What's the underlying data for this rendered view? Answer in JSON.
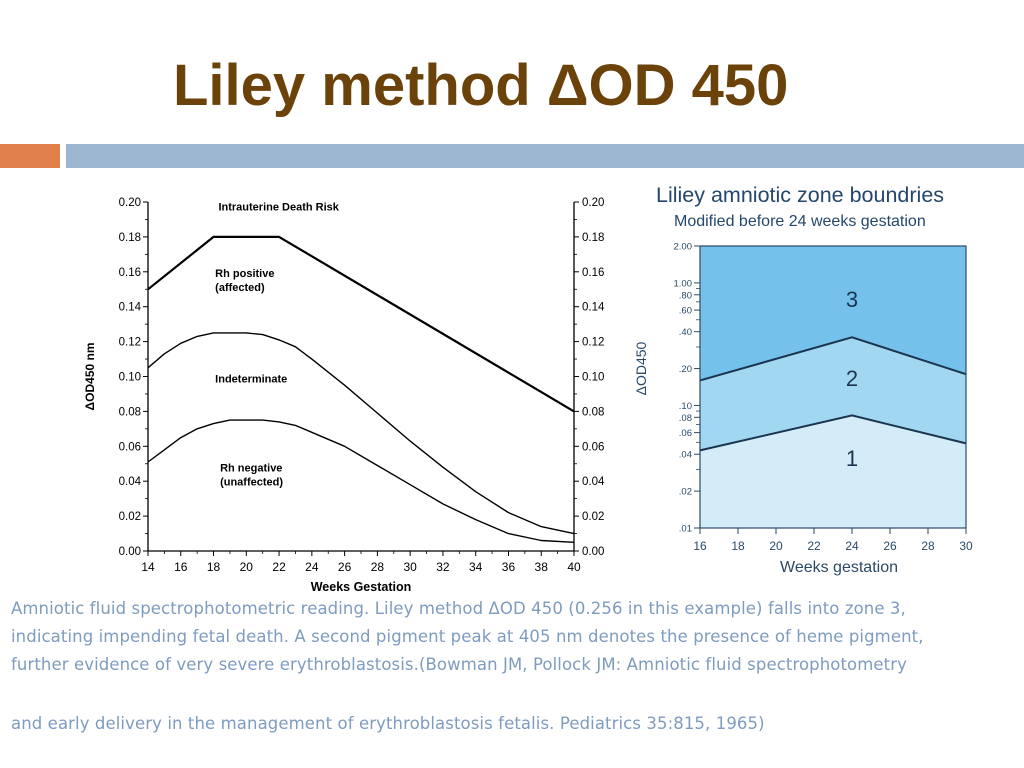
{
  "slide": {
    "title": "Liley method ΔOD 450",
    "caption_lines": [
      "Amniotic fluid spectrophotometric reading. Liley method ΔOD 450 (0.256 in this example) falls into zone 3,",
      "indicating impending fetal death. A second pigment peak at 405 nm denotes the presence of heme pigment,",
      "further evidence of very severe erythroblastosis.(Bowman JM, Pollock JM: Amniotic fluid spectrophotometry",
      "and early delivery in the management of erythroblastosis fetalis. Pediatrics 35:815, 1965)"
    ],
    "colors": {
      "title": "#6b4209",
      "accent_orange": "#e07f49",
      "accent_blue": "#9cb6d0",
      "caption": "#7e9bc0"
    }
  },
  "chart_data": [
    {
      "type": "line",
      "title": "",
      "xlabel": "Weeks Gestation",
      "ylabel": "ΔOD450 nm",
      "xlim": [
        14,
        40
      ],
      "ylim": [
        0,
        0.2
      ],
      "xticks": [
        "14",
        "16",
        "18",
        "20",
        "22",
        "24",
        "26",
        "28",
        "30",
        "32",
        "34",
        "36",
        "38",
        "40"
      ],
      "yticks": [
        "0.00",
        "0.02",
        "0.04",
        "0.06",
        "0.08",
        "0.10",
        "0.12",
        "0.14",
        "0.16",
        "0.18",
        "0.20"
      ],
      "series": [
        {
          "x": [
            14,
            18,
            22,
            40
          ],
          "y": [
            0.15,
            0.18,
            0.18,
            0.08
          ]
        },
        {
          "x": [
            14,
            15,
            16,
            17,
            18,
            19,
            20,
            21,
            22,
            23,
            24,
            26,
            28,
            30,
            32,
            34,
            36,
            38,
            40
          ],
          "y": [
            0.105,
            0.113,
            0.119,
            0.123,
            0.125,
            0.125,
            0.125,
            0.124,
            0.121,
            0.117,
            0.11,
            0.095,
            0.079,
            0.063,
            0.048,
            0.034,
            0.022,
            0.014,
            0.01
          ]
        },
        {
          "x": [
            14,
            15,
            16,
            17,
            18,
            19,
            20,
            21,
            22,
            23,
            24,
            26,
            28,
            30,
            32,
            34,
            36,
            38,
            40
          ],
          "y": [
            0.051,
            0.058,
            0.065,
            0.07,
            0.073,
            0.075,
            0.075,
            0.075,
            0.074,
            0.072,
            0.068,
            0.06,
            0.049,
            0.038,
            0.027,
            0.018,
            0.01,
            0.006,
            0.005
          ]
        }
      ],
      "annotations": [
        {
          "text": [
            "Intrauterine  Death  Risk"
          ],
          "x": 18.3,
          "y": 0.195
        },
        {
          "text": [
            "Rh  positive",
            "(affected)"
          ],
          "x": 18.1,
          "y": 0.157
        },
        {
          "text": [
            "Indeterminate"
          ],
          "x": 18.1,
          "y": 0.0965
        },
        {
          "text": [
            "Rh  negative",
            "(unaffected)"
          ],
          "x": 18.4,
          "y": 0.0455
        }
      ]
    },
    {
      "type": "area",
      "title": "Liliey amniotic zone boundries",
      "subtitle": "Modified before 24 weeks gestation",
      "xlabel": "Weeks gestation",
      "ylabel": "ΔOD450",
      "yscale": "log",
      "xlim": [
        16,
        30
      ],
      "ylim": [
        0.01,
        2.0
      ],
      "xticks": [
        "16",
        "18",
        "20",
        "22",
        "24",
        "26",
        "28",
        "30"
      ],
      "yticks": [
        {
          "value": 2.0,
          "label": "2.00"
        },
        {
          "value": 1.0,
          "label": "1.00"
        },
        {
          "value": 0.8,
          "label": ".80"
        },
        {
          "value": 0.6,
          "label": ".60"
        },
        {
          "value": 0.4,
          "label": ".40"
        },
        {
          "value": 0.2,
          "label": ".20"
        },
        {
          "value": 0.1,
          "label": ".10"
        },
        {
          "value": 0.08,
          "label": ".08"
        },
        {
          "value": 0.06,
          "label": ".06"
        },
        {
          "value": 0.04,
          "label": ".04"
        },
        {
          "value": 0.02,
          "label": ".02"
        },
        {
          "value": 0.01,
          "label": ".01"
        }
      ],
      "boundaries": [
        {
          "x": [
            16,
            24,
            30
          ],
          "y": [
            0.16,
            0.36,
            0.18
          ]
        },
        {
          "x": [
            16,
            24,
            30
          ],
          "y": [
            0.043,
            0.083,
            0.049
          ]
        }
      ],
      "zones": [
        {
          "label": "1",
          "color": "#d3ecf8"
        },
        {
          "label": "2",
          "color": "#a2d7f1"
        },
        {
          "label": "3",
          "color": "#74c2ec"
        }
      ],
      "zone_label_positions": [
        {
          "x": 24,
          "y": 0.038
        },
        {
          "x": 24,
          "y": 0.17
        },
        {
          "x": 24,
          "y": 0.75
        }
      ]
    }
  ]
}
